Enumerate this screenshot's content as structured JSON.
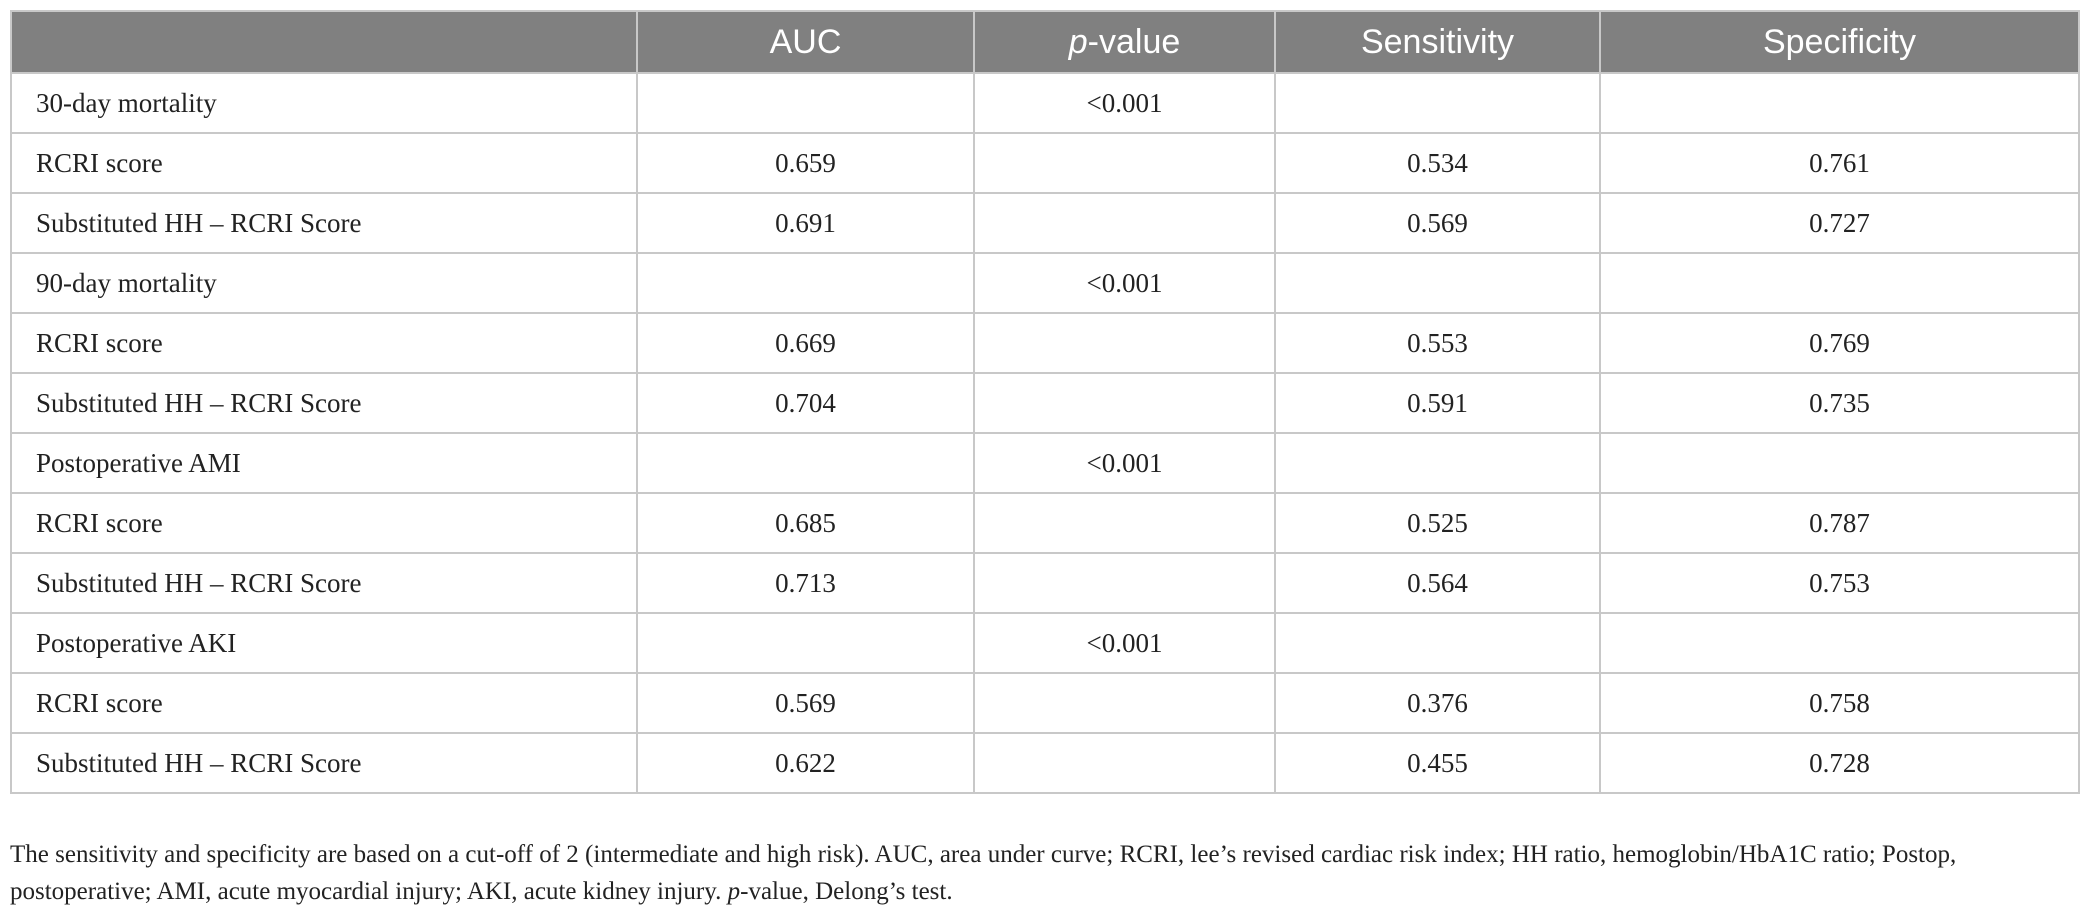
{
  "table": {
    "headers": [
      "",
      "AUC",
      "-value",
      "Sensitivity",
      "Specificity"
    ],
    "p_italic": "p",
    "rows": [
      {
        "label": "30-day mortality",
        "auc": "",
        "p": "<0.001",
        "sens": "",
        "spec": ""
      },
      {
        "label": "RCRI score",
        "auc": "0.659",
        "p": "",
        "sens": "0.534",
        "spec": "0.761"
      },
      {
        "label": "Substituted HH – RCRI Score",
        "auc": "0.691",
        "p": "",
        "sens": "0.569",
        "spec": "0.727"
      },
      {
        "label": "90-day mortality",
        "auc": "",
        "p": "<0.001",
        "sens": "",
        "spec": ""
      },
      {
        "label": "RCRI score",
        "auc": "0.669",
        "p": "",
        "sens": "0.553",
        "spec": "0.769"
      },
      {
        "label": "Substituted HH – RCRI Score",
        "auc": "0.704",
        "p": "",
        "sens": "0.591",
        "spec": "0.735"
      },
      {
        "label": "Postoperative AMI",
        "auc": "",
        "p": "<0.001",
        "sens": "",
        "spec": ""
      },
      {
        "label": "RCRI score",
        "auc": "0.685",
        "p": "",
        "sens": "0.525",
        "spec": "0.787"
      },
      {
        "label": "Substituted HH – RCRI Score",
        "auc": "0.713",
        "p": "",
        "sens": "0.564",
        "spec": "0.753"
      },
      {
        "label": "Postoperative AKI",
        "auc": "",
        "p": "<0.001",
        "sens": "",
        "spec": ""
      },
      {
        "label": "RCRI score",
        "auc": "0.569",
        "p": "",
        "sens": "0.376",
        "spec": "0.758"
      },
      {
        "label": "Substituted HH – RCRI Score",
        "auc": "0.622",
        "p": "",
        "sens": "0.455",
        "spec": "0.728"
      }
    ]
  },
  "footnote": {
    "line1": "The sensitivity and specificity are based on a cut-off of 2 (intermediate and high risk). AUC, area under curve; RCRI, lee’s revised cardiac risk index; HH ratio, hemoglobin/HbA1C ratio; Postop,",
    "line2_pre": "postoperative; AMI, acute myocardial injury; AKI, acute kidney injury. ",
    "line2_italic": "p",
    "line2_post": "-value, Delong’s test."
  }
}
